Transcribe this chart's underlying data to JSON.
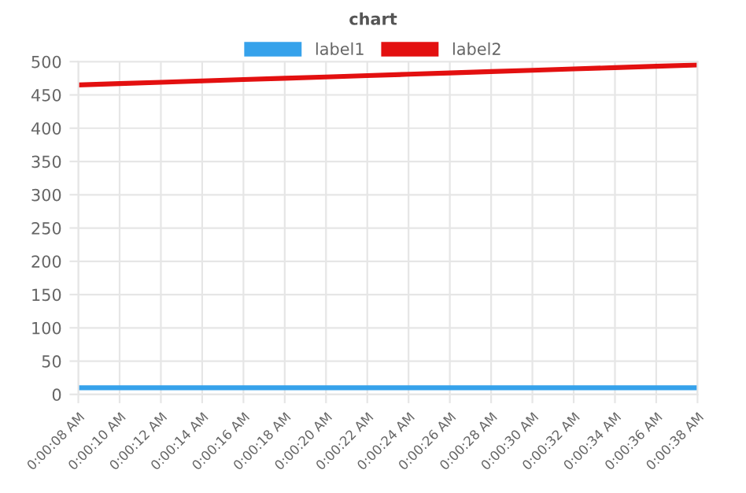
{
  "chart_data": {
    "type": "line",
    "title": "chart",
    "categories": [
      "0:00:08 AM",
      "0:00:10 AM",
      "0:00:12 AM",
      "0:00:14 AM",
      "0:00:16 AM",
      "0:00:18 AM",
      "0:00:20 AM",
      "0:00:22 AM",
      "0:00:24 AM",
      "0:00:26 AM",
      "0:00:28 AM",
      "0:00:30 AM",
      "0:00:32 AM",
      "0:00:34 AM",
      "0:00:36 AM",
      "0:00:38 AM"
    ],
    "series": [
      {
        "name": "label1",
        "color": "#36a2eb",
        "values": [
          10,
          10,
          10,
          10,
          10,
          10,
          10,
          10,
          10,
          10,
          10,
          10,
          10,
          10,
          10,
          10
        ]
      },
      {
        "name": "label2",
        "color": "#e31010",
        "values": [
          465,
          467,
          469,
          471,
          473,
          475,
          477,
          479,
          481,
          483,
          485,
          487,
          489,
          491,
          493,
          495
        ]
      }
    ],
    "ylim": [
      0,
      500
    ],
    "yticks": [
      0,
      50,
      100,
      150,
      200,
      250,
      300,
      350,
      400,
      450,
      500
    ],
    "grid": true,
    "legend": "top",
    "marker": "none",
    "line_style": "solid"
  }
}
